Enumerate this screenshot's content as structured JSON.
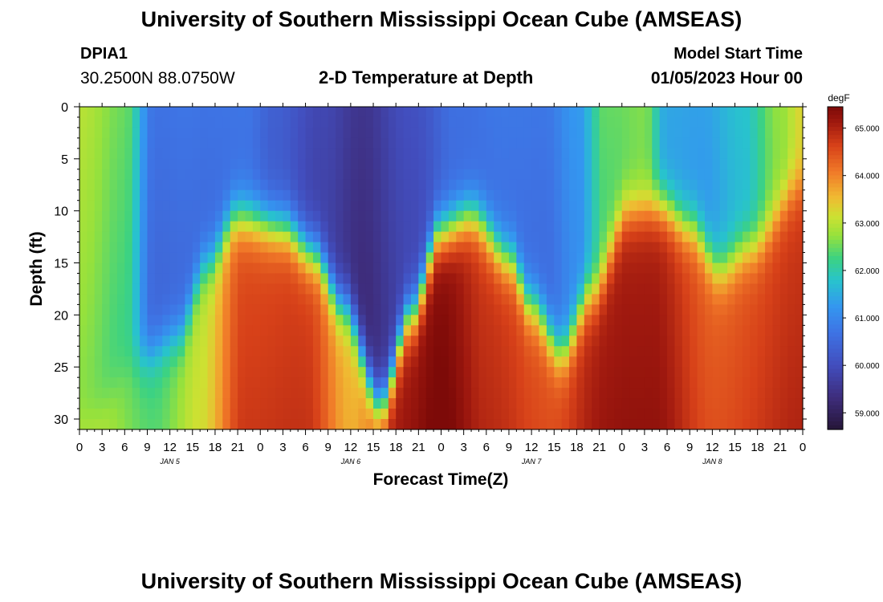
{
  "header": {
    "title": "University of Southern Mississippi Ocean Cube (AMSEAS)",
    "station_id": "DPIA1",
    "station_coords": "30.2500N  88.0750W",
    "plot_title": "2-D Temperature at Depth",
    "model_start_label": "Model Start Time",
    "model_start_value": "01/05/2023 Hour 00"
  },
  "footer": {
    "title": "University of Southern Mississippi Ocean Cube (AMSEAS)"
  },
  "chart_data": {
    "type": "heatmap",
    "title": "2-D Temperature at Depth",
    "xlabel": "Forecast Time(Z)",
    "ylabel": "Depth (ft)",
    "x_ticks": [
      "0",
      "3",
      "6",
      "9",
      "12",
      "15",
      "18",
      "21",
      "0",
      "3",
      "6",
      "9",
      "12",
      "15",
      "18",
      "21",
      "0",
      "3",
      "6",
      "9",
      "12",
      "15",
      "18",
      "21",
      "0",
      "3",
      "6",
      "9",
      "12",
      "15",
      "18",
      "21",
      "0"
    ],
    "x_hours_range": [
      0,
      96
    ],
    "day_labels": [
      {
        "label": "JAN 5",
        "hour": 12
      },
      {
        "label": "JAN 6",
        "hour": 36
      },
      {
        "label": "JAN 7",
        "hour": 60
      },
      {
        "label": "JAN 8",
        "hour": 84
      }
    ],
    "y_ticks": [
      0,
      5,
      10,
      15,
      20,
      25,
      30
    ],
    "ylim": [
      0,
      31
    ],
    "colorbar": {
      "unit": "degF",
      "ticks": [
        "65.000",
        "64.000",
        "63.000",
        "62.000",
        "61.000",
        "60.000",
        "59.000"
      ],
      "tick_values": [
        65,
        64,
        63,
        62,
        61,
        60,
        59
      ],
      "range": [
        58.65,
        65.45
      ]
    },
    "thermocline_depth_ft": [
      {
        "hour": 0,
        "depth": 31
      },
      {
        "hour": 8,
        "depth": 24
      },
      {
        "hour": 13,
        "depth": 22
      },
      {
        "hour": 17,
        "depth": 15
      },
      {
        "hour": 21,
        "depth": 10.5
      },
      {
        "hour": 27,
        "depth": 11.5
      },
      {
        "hour": 31,
        "depth": 14
      },
      {
        "hour": 35,
        "depth": 19
      },
      {
        "hour": 40,
        "depth": 28.5
      },
      {
        "hour": 44,
        "depth": 20
      },
      {
        "hour": 48,
        "depth": 12
      },
      {
        "hour": 52,
        "depth": 10.5
      },
      {
        "hour": 57,
        "depth": 14.5
      },
      {
        "hour": 60,
        "depth": 19
      },
      {
        "hour": 64,
        "depth": 23.5
      },
      {
        "hour": 68,
        "depth": 18
      },
      {
        "hour": 73,
        "depth": 10
      },
      {
        "hour": 77,
        "depth": 9.5
      },
      {
        "hour": 81,
        "depth": 11.5
      },
      {
        "hour": 85,
        "depth": 15.5
      },
      {
        "hour": 89,
        "depth": 13.5
      },
      {
        "hour": 96,
        "depth": 7.5
      }
    ],
    "upper_layer_temp_degF": [
      {
        "hour": 0,
        "temp": 62.6
      },
      {
        "hour": 6,
        "temp": 62.2
      },
      {
        "hour": 10,
        "temp": 60.4
      },
      {
        "hour": 16,
        "temp": 60.5
      },
      {
        "hour": 22,
        "temp": 60.6
      },
      {
        "hour": 26,
        "temp": 60.2
      },
      {
        "hour": 32,
        "temp": 59.7
      },
      {
        "hour": 38,
        "temp": 59.2
      },
      {
        "hour": 44,
        "temp": 59.8
      },
      {
        "hour": 50,
        "temp": 60.5
      },
      {
        "hour": 56,
        "temp": 60.6
      },
      {
        "hour": 62,
        "temp": 60.5
      },
      {
        "hour": 66,
        "temp": 61.0
      },
      {
        "hour": 70,
        "temp": 62.3
      },
      {
        "hour": 75,
        "temp": 62.5
      },
      {
        "hour": 78,
        "temp": 61.3
      },
      {
        "hour": 83,
        "temp": 61.2
      },
      {
        "hour": 88,
        "temp": 61.6
      },
      {
        "hour": 93,
        "temp": 62.6
      },
      {
        "hour": 96,
        "temp": 63.2
      }
    ],
    "lower_layer_temp_degF": [
      {
        "hour": 0,
        "temp": 63.1
      },
      {
        "hour": 10,
        "temp": 62.3
      },
      {
        "hour": 16,
        "temp": 63.0
      },
      {
        "hour": 22,
        "temp": 64.5
      },
      {
        "hour": 30,
        "temp": 64.6
      },
      {
        "hour": 36,
        "temp": 63.5
      },
      {
        "hour": 42,
        "temp": 65.0
      },
      {
        "hour": 48,
        "temp": 65.3
      },
      {
        "hour": 54,
        "temp": 64.7
      },
      {
        "hour": 62,
        "temp": 64.4
      },
      {
        "hour": 70,
        "temp": 65.0
      },
      {
        "hour": 76,
        "temp": 65.0
      },
      {
        "hour": 84,
        "temp": 64.3
      },
      {
        "hour": 96,
        "temp": 64.7
      }
    ]
  }
}
